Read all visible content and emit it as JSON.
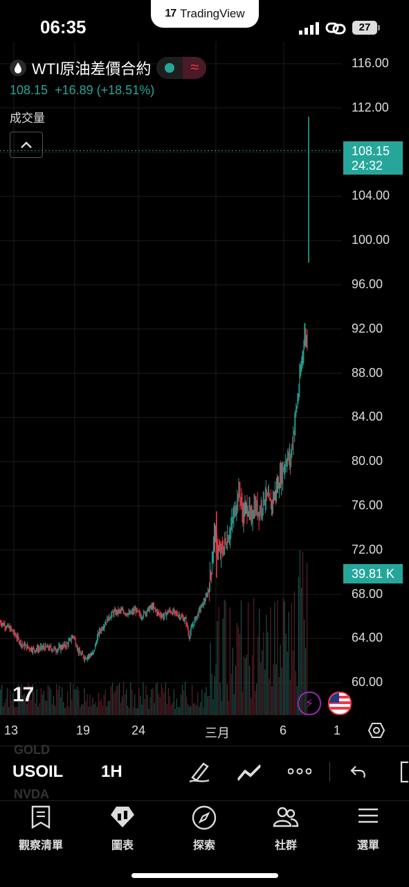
{
  "status_bar": {
    "time": "06:35",
    "app_badge": "TradingView",
    "battery": "27"
  },
  "symbol": {
    "name": "WTI原油差價合約",
    "last": "108.15",
    "change": "+16.89",
    "change_pct": "(+18.51%)",
    "volume_label": "成交量",
    "collapse_icon": "chevron-up-icon"
  },
  "price_axis": [
    "116.00",
    "112.00",
    "104.00",
    "100.00",
    "96.00",
    "92.00",
    "88.00",
    "84.00",
    "80.00",
    "76.00",
    "72.00",
    "68.00",
    "64.00",
    "60.00"
  ],
  "price_tag": {
    "price": "108.15",
    "countdown": "24:32"
  },
  "volume_tag": "39.81 K",
  "date_axis": [
    "13",
    "19",
    "24",
    "三月",
    "6",
    "1"
  ],
  "toolbar": {
    "ghost_top": "GOLD",
    "ghost_bottom": "NVDA",
    "ticker": "USOIL",
    "interval": "1H",
    "icons": [
      "draw-icon",
      "indicators-icon",
      "more-icon",
      "undo-icon",
      "fullscreen-icon"
    ]
  },
  "nav": [
    {
      "label": "觀察清單",
      "icon": "watchlist-icon"
    },
    {
      "label": "圖表",
      "icon": "chart-icon"
    },
    {
      "label": "探索",
      "icon": "compass-icon"
    },
    {
      "label": "社群",
      "icon": "community-icon"
    },
    {
      "label": "選單",
      "icon": "menu-icon"
    }
  ],
  "colors": {
    "up": "#26a69a",
    "down": "#f23645",
    "accent": "#26a69a"
  },
  "chart_data": {
    "type": "candlestick",
    "symbol": "USOIL",
    "interval": "1H",
    "ylim": [
      57,
      118
    ],
    "x_ticks": [
      "13",
      "19",
      "24",
      "三月",
      "6",
      "1"
    ],
    "last_price": 108.15,
    "latest_candle": {
      "high": 111.2,
      "low": 98.0
    },
    "price_path": [
      [
        0,
        65.5
      ],
      [
        4,
        64.8
      ],
      [
        8,
        63.4
      ],
      [
        12,
        63.0
      ],
      [
        16,
        63.2
      ],
      [
        20,
        63.0
      ],
      [
        24,
        63.5
      ],
      [
        26,
        64.3
      ],
      [
        28,
        62.7
      ],
      [
        30,
        62.3
      ],
      [
        33,
        62.6
      ],
      [
        35,
        64.5
      ],
      [
        38,
        65.7
      ],
      [
        40,
        66.3
      ],
      [
        43,
        66.5
      ],
      [
        46,
        66.2
      ],
      [
        48,
        66.6
      ],
      [
        50,
        66.0
      ],
      [
        52,
        66.5
      ],
      [
        54,
        66.9
      ],
      [
        56,
        66.3
      ],
      [
        58,
        66.0
      ],
      [
        60,
        66.5
      ],
      [
        63,
        66.2
      ],
      [
        66,
        65.6
      ],
      [
        67,
        64.2
      ],
      [
        69,
        65.6
      ],
      [
        71,
        66.7
      ],
      [
        73,
        67.6
      ],
      [
        74,
        68.5
      ],
      [
        75,
        70.5
      ],
      [
        76,
        73.5
      ],
      [
        77,
        72.5
      ],
      [
        78,
        71.5
      ],
      [
        80,
        72.7
      ],
      [
        82,
        74.0
      ],
      [
        84,
        76.5
      ],
      [
        85,
        77.5
      ],
      [
        86,
        75.2
      ],
      [
        88,
        76.0
      ],
      [
        89,
        74.5
      ],
      [
        90,
        76.0
      ],
      [
        92,
        75.5
      ],
      [
        94,
        77.0
      ],
      [
        96,
        76.0
      ],
      [
        98,
        77.5
      ],
      [
        100,
        79.0
      ],
      [
        102,
        80.5
      ],
      [
        103,
        80.0
      ],
      [
        104,
        82.5
      ],
      [
        105,
        84.5
      ],
      [
        106,
        86.5
      ],
      [
        107,
        89.0
      ],
      [
        108,
        91.5
      ],
      [
        109,
        91.0
      ],
      [
        110,
        108.15
      ]
    ],
    "volume_peak": "39.81 K"
  }
}
